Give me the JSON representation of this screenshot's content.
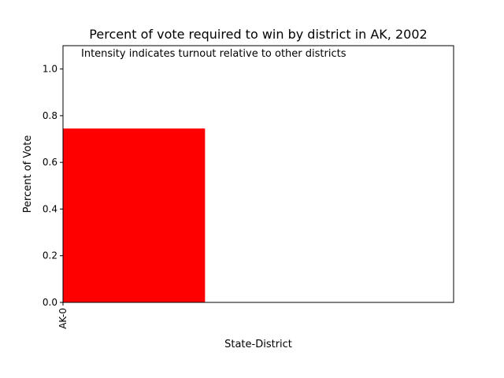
{
  "chart_data": {
    "type": "bar",
    "title": "Percent of vote required to win by district in AK, 2002",
    "annotation": "Intensity indicates turnout relative to other districts",
    "xlabel": "State-District",
    "ylabel": "Percent of Vote",
    "categories": [
      "AK-0"
    ],
    "values": [
      0.745
    ],
    "bar_colors": [
      "#ff0000"
    ],
    "ylim": [
      0,
      1.1
    ],
    "yticks": [
      0.0,
      0.2,
      0.4,
      0.6,
      0.8,
      1.0
    ],
    "ytick_labels": [
      "0.0",
      "0.2",
      "0.4",
      "0.6",
      "0.8",
      "1.0"
    ],
    "grid": false,
    "legend": "none"
  }
}
